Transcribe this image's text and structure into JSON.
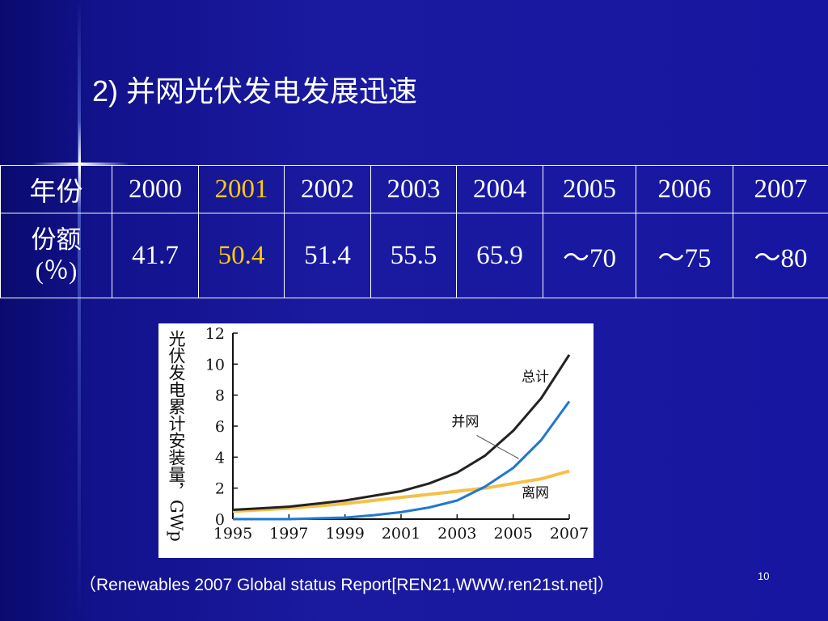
{
  "slide": {
    "title": "2) 并网光伏发电发展迅速",
    "source": "（Renewables 2007 Global status Report[REN21,WWW.ren21st.net]）",
    "page_number": "10"
  },
  "table": {
    "row1_label": "年份",
    "row2_label_line1": "份额",
    "row2_label_line2": "(％)",
    "years": [
      "2000",
      "2001",
      "2002",
      "2003",
      "2004",
      "2005",
      "2006",
      "2007"
    ],
    "shares": [
      "41.7",
      "50.4",
      "51.4",
      "55.5",
      "65.9",
      "～70",
      "～75",
      "～80"
    ],
    "highlight_color": "#ffcc00"
  },
  "chart_data": {
    "type": "line",
    "ylabel": "光伏发电累计安装量，GWp",
    "xlim": [
      1995,
      2007
    ],
    "ylim": [
      0,
      12
    ],
    "xticks": [
      "1995",
      "1997",
      "1999",
      "2001",
      "2003",
      "2005",
      "2007"
    ],
    "yticks": [
      "0",
      "2",
      "4",
      "6",
      "8",
      "10",
      "12"
    ],
    "x": [
      1995,
      1996,
      1997,
      1998,
      1999,
      2000,
      2001,
      2002,
      2003,
      2004,
      2005,
      2006,
      2007
    ],
    "series": [
      {
        "name": "总计",
        "color": "#222222",
        "values": [
          0.6,
          0.7,
          0.8,
          1.0,
          1.2,
          1.5,
          1.8,
          2.3,
          3.0,
          4.1,
          5.7,
          7.8,
          10.6
        ]
      },
      {
        "name": "并网",
        "color": "#1e78d2",
        "values": [
          0.0,
          0.0,
          0.0,
          0.05,
          0.1,
          0.25,
          0.45,
          0.75,
          1.2,
          2.1,
          3.3,
          5.1,
          7.6
        ]
      },
      {
        "name": "离网",
        "color": "#f5c04a",
        "values": [
          0.5,
          0.6,
          0.7,
          0.85,
          1.0,
          1.2,
          1.4,
          1.6,
          1.8,
          2.0,
          2.3,
          2.6,
          3.1
        ]
      }
    ]
  }
}
